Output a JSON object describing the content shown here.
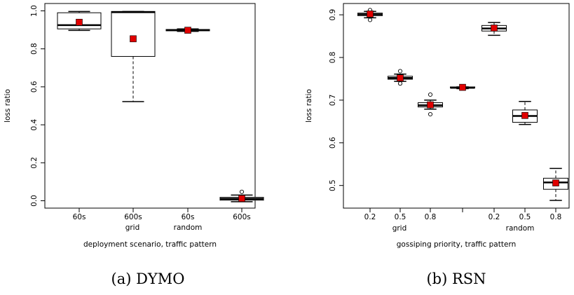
{
  "chart_data": [
    {
      "type": "box",
      "caption": "(a) DYMO",
      "xlabel": "deployment scenario, traffic pattern",
      "ylabel": "loss ratio",
      "ylim": [
        0.0,
        1.0
      ],
      "yticks": [
        "0.0",
        "0.2",
        "0.4",
        "0.6",
        "0.8",
        "1.0"
      ],
      "group_labels": [
        "grid",
        "random"
      ],
      "categories": [
        "60s",
        "600s",
        "60s",
        "600s"
      ],
      "boxes": [
        {
          "whisker_low": 0.897,
          "q1": 0.905,
          "median": 0.925,
          "q3": 0.99,
          "whisker_high": 0.997,
          "mean": 0.94,
          "outliers": []
        },
        {
          "whisker_low": 0.522,
          "q1": 0.76,
          "median": 0.993,
          "q3": 0.997,
          "whisker_high": 0.997,
          "mean": 0.853,
          "outliers": []
        },
        {
          "whisker_low": 0.892,
          "q1": 0.895,
          "median": 0.898,
          "q3": 0.902,
          "whisker_high": 0.905,
          "mean": 0.898,
          "outliers": []
        },
        {
          "whisker_low": -0.005,
          "q1": 0.003,
          "median": 0.01,
          "q3": 0.018,
          "whisker_high": 0.03,
          "mean": 0.012,
          "outliers": [
            0.047
          ]
        }
      ]
    },
    {
      "type": "box",
      "caption": "(b) RSN",
      "xlabel": "gossiping priority, traffic pattern",
      "ylabel": "loss ratio",
      "ylim": [
        0.465,
        0.915
      ],
      "yticks": [
        "0.5",
        "0.6",
        "0.7",
        "0.8",
        "0.9"
      ],
      "group_labels": [
        "grid",
        "random"
      ],
      "categories": [
        "0.2",
        "0.5",
        "0.8",
        "",
        "0.2",
        "0.5",
        "0.8"
      ],
      "boxes": [
        {
          "whisker_low": 0.893,
          "q1": 0.898,
          "median": 0.901,
          "q3": 0.904,
          "whisker_high": 0.908,
          "mean": 0.902,
          "outliers": [
            0.888,
            0.911
          ]
        },
        {
          "whisker_low": 0.744,
          "q1": 0.749,
          "median": 0.752,
          "q3": 0.756,
          "whisker_high": 0.761,
          "mean": 0.752,
          "outliers": [
            0.739,
            0.768
          ]
        },
        {
          "whisker_low": 0.679,
          "q1": 0.684,
          "median": 0.688,
          "q3": 0.694,
          "whisker_high": 0.7,
          "mean": 0.689,
          "outliers": [
            0.667,
            0.713
          ]
        },
        {
          "whisker_low": 0.727,
          "q1": 0.729,
          "median": 0.729,
          "q3": 0.731,
          "whisker_high": 0.731,
          "mean": 0.73,
          "outliers": []
        },
        {
          "whisker_low": 0.852,
          "q1": 0.862,
          "median": 0.868,
          "q3": 0.875,
          "whisker_high": 0.882,
          "mean": 0.869,
          "outliers": []
        },
        {
          "whisker_low": 0.643,
          "q1": 0.648,
          "median": 0.663,
          "q3": 0.677,
          "whisker_high": 0.697,
          "mean": 0.664,
          "outliers": []
        },
        {
          "whisker_low": 0.465,
          "q1": 0.491,
          "median": 0.507,
          "q3": 0.517,
          "whisker_high": 0.54,
          "mean": 0.506,
          "outliers": []
        }
      ]
    }
  ],
  "colors": {
    "mean_marker": "#e00000",
    "box_fill": "#ffffff",
    "axis": "#000000"
  }
}
